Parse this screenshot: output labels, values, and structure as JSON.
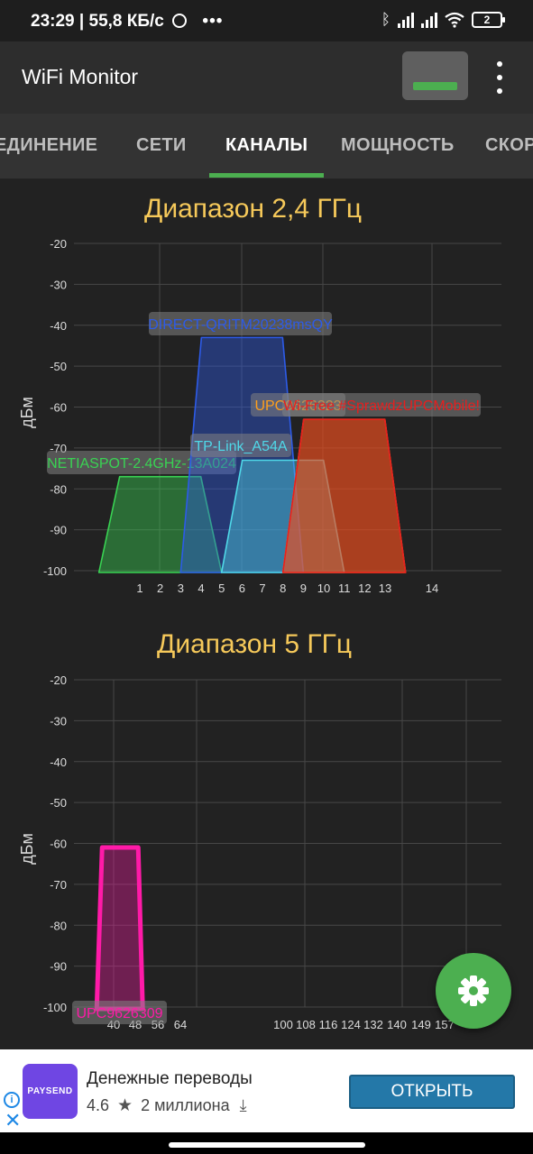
{
  "status_bar": {
    "time": "23:29",
    "speed": "55,8 КБ/с",
    "battery": "2",
    "icons": [
      "alarm-icon",
      "more-dots-icon",
      "bluetooth-icon",
      "signal-icon",
      "wifi-icon",
      "battery-icon"
    ]
  },
  "app_bar": {
    "title": "WiFi Monitor"
  },
  "tabs": [
    {
      "label": "ЕДИНЕНИЕ",
      "active": false
    },
    {
      "label": "СЕТИ",
      "active": false
    },
    {
      "label": "КАНАЛЫ",
      "active": true
    },
    {
      "label": "МОЩНОСТЬ",
      "active": false
    },
    {
      "label": "СКОР",
      "active": false
    }
  ],
  "colors": {
    "accent": "#4caf50",
    "band_title": "#f6c95a",
    "ad_button": "#2478a8"
  },
  "chart_data": [
    {
      "type": "area",
      "title": "Диапазон 2,4 ГГц",
      "ylabel": "дБм",
      "ylim": [
        -100,
        -20
      ],
      "yticks": [
        -20,
        -30,
        -40,
        -50,
        -60,
        -70,
        -80,
        -90,
        -100
      ],
      "xticks": [
        1,
        2,
        3,
        4,
        5,
        6,
        7,
        8,
        9,
        10,
        11,
        12,
        13,
        14
      ],
      "grid": true,
      "networks": [
        {
          "ssid": "NETIASPOT-2.4GHz-13A024",
          "channel": 2,
          "dbm": -77,
          "color": "#39d353"
        },
        {
          "ssid": "DIRECT-QRITM20238msQY",
          "channel": 6,
          "dbm": -43,
          "color": "#2d5be8"
        },
        {
          "ssid": "TP-Link_A54A",
          "channel": 8,
          "dbm": -73,
          "color": "#4fd8e8"
        },
        {
          "ssid": "UPC9626323",
          "channel": 11,
          "dbm": -63,
          "color": "#ff9f1c"
        },
        {
          "ssid": "Wi-Free #SprawdzUPCMobile!",
          "channel": 11,
          "dbm": -63,
          "color": "#e81e1e"
        }
      ]
    },
    {
      "type": "area",
      "title": "Диапазон 5 ГГц",
      "ylabel": "дБм",
      "ylim": [
        -100,
        -20
      ],
      "yticks": [
        -20,
        -30,
        -40,
        -50,
        -60,
        -70,
        -80,
        -90,
        -100
      ],
      "xticks": [
        40,
        48,
        56,
        64,
        100,
        108,
        116,
        124,
        132,
        140,
        149,
        157
      ],
      "grid": true,
      "networks": [
        {
          "ssid": "UPC9626309",
          "channel": 44,
          "dbm": -61,
          "color": "#ff1aa8"
        }
      ]
    }
  ],
  "ad": {
    "logo_text": "PAYSEND",
    "title": "Денежные переводы",
    "rating": "4.6",
    "downloads": "2 миллиона",
    "button_label": "ОТКРЫТЬ"
  }
}
